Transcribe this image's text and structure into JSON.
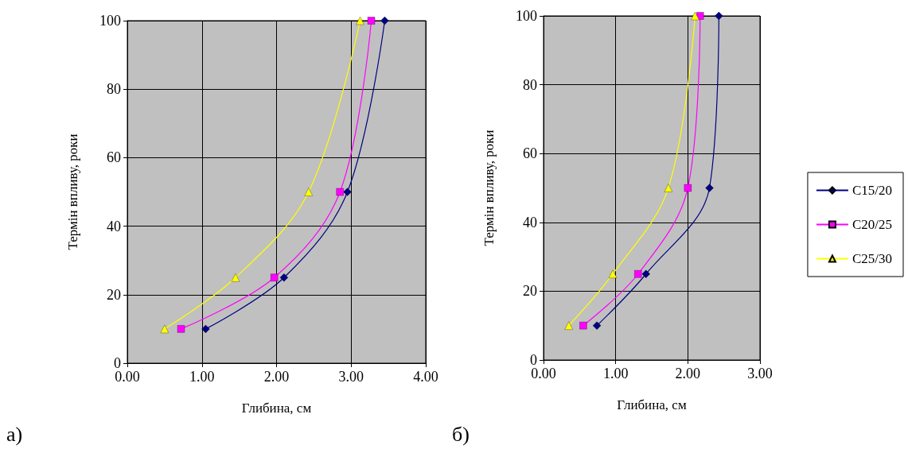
{
  "chart_data": [
    {
      "type": "line",
      "xlabel": "Глибина, см",
      "ylabel": "Термін впливу, роки",
      "annotations": [
        "а)"
      ],
      "xlim": [
        0,
        4
      ],
      "xticks": [
        {
          "value": 0,
          "label": "0.00"
        },
        {
          "value": 1,
          "label": "1.00"
        },
        {
          "value": 2,
          "label": "2.00"
        },
        {
          "value": 3,
          "label": "3.00"
        },
        {
          "value": 4,
          "label": "4.00"
        }
      ],
      "ylim": [
        0,
        100
      ],
      "yticks": [
        0,
        20,
        40,
        60,
        80,
        100
      ],
      "grid": true,
      "legend": false,
      "series": [
        {
          "color": "#000080",
          "marker": "diamond",
          "x": [
            1.05,
            2.1,
            2.95,
            3.45
          ],
          "values": [
            10,
            25,
            50,
            100
          ]
        },
        {
          "color": "#ff00ff",
          "marker": "square",
          "x": [
            0.72,
            1.97,
            2.85,
            3.27
          ],
          "values": [
            10,
            25,
            50,
            100
          ]
        },
        {
          "color": "#ffff00",
          "marker": "triangle",
          "x": [
            0.5,
            1.45,
            2.43,
            3.12
          ],
          "values": [
            10,
            25,
            50,
            100
          ]
        }
      ]
    },
    {
      "type": "line",
      "xlabel": "Глибина, см",
      "ylabel": "Термін впливу, роки",
      "annotations": [
        "б)"
      ],
      "xlim": [
        0,
        3
      ],
      "xticks": [
        {
          "value": 0,
          "label": "0.00"
        },
        {
          "value": 1,
          "label": "1.00"
        },
        {
          "value": 2,
          "label": "2.00"
        },
        {
          "value": 3,
          "label": "3.00"
        }
      ],
      "ylim": [
        0,
        100
      ],
      "yticks": [
        0,
        20,
        40,
        60,
        80,
        100
      ],
      "grid": true,
      "legend": "right",
      "series": [
        {
          "name": "C15/20",
          "color": "#000080",
          "marker": "diamond",
          "x": [
            0.74,
            1.42,
            2.3,
            2.43
          ],
          "values": [
            10,
            25,
            50,
            100
          ]
        },
        {
          "name": "C20/25",
          "color": "#ff00ff",
          "marker": "square",
          "x": [
            0.55,
            1.31,
            2.0,
            2.17
          ],
          "values": [
            10,
            25,
            50,
            100
          ]
        },
        {
          "name": "C25/30",
          "color": "#ffff00",
          "marker": "triangle",
          "x": [
            0.35,
            0.96,
            1.73,
            2.1
          ],
          "values": [
            10,
            25,
            50,
            100
          ]
        }
      ]
    }
  ]
}
